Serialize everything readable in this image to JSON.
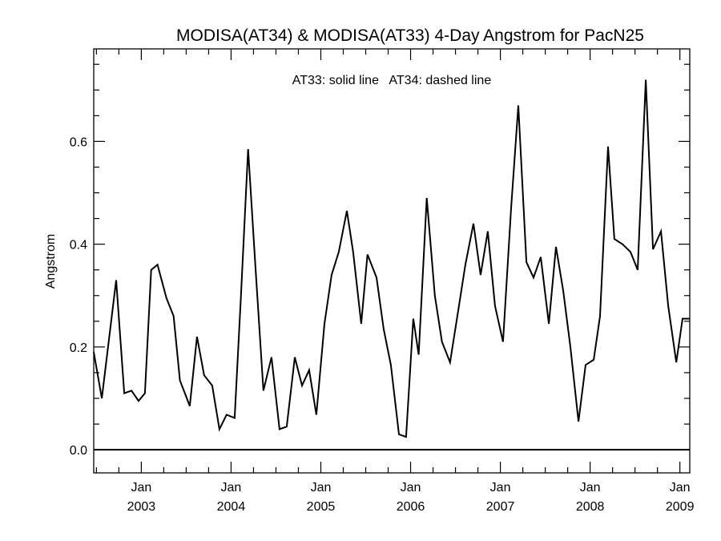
{
  "chart_data": {
    "type": "line",
    "title": "MODISA(AT34) & MODISA(AT33) 4-Day Angstrom for PacN25",
    "annotation": "AT33: solid line   AT34: dashed line",
    "xlabel": "",
    "ylabel": "Angstrom",
    "xlim": [
      2002.47,
      2009.11
    ],
    "ylim": [
      -0.045,
      0.78
    ],
    "x_ticks": [
      {
        "value": 2003.0,
        "month": "Jan",
        "year": "2003"
      },
      {
        "value": 2004.0,
        "month": "Jan",
        "year": "2004"
      },
      {
        "value": 2005.0,
        "month": "Jan",
        "year": "2005"
      },
      {
        "value": 2006.0,
        "month": "Jan",
        "year": "2006"
      },
      {
        "value": 2007.0,
        "month": "Jan",
        "year": "2007"
      },
      {
        "value": 2008.0,
        "month": "Jan",
        "year": "2008"
      },
      {
        "value": 2009.0,
        "month": "Jan",
        "year": "2009"
      }
    ],
    "y_ticks": [
      {
        "value": 0.0,
        "label": "0.0"
      },
      {
        "value": 0.2,
        "label": "0.2"
      },
      {
        "value": 0.4,
        "label": "0.4"
      },
      {
        "value": 0.6,
        "label": "0.6"
      }
    ],
    "reference_line": 0.0,
    "grid": false,
    "series": [
      {
        "style": "solid",
        "x": [
          2002.47,
          2002.56,
          2002.72,
          2002.81,
          2002.89,
          2002.97,
          2003.04,
          2003.11,
          2003.18,
          2003.28,
          2003.36,
          2003.43,
          2003.54,
          2003.62,
          2003.7,
          2003.79,
          2003.87,
          2003.95,
          2004.04,
          2004.11,
          2004.19,
          2004.27,
          2004.36,
          2004.45,
          2004.54,
          2004.62,
          2004.71,
          2004.79,
          2004.87,
          2004.95,
          2005.04,
          2005.12,
          2005.2,
          2005.29,
          2005.36,
          2005.45,
          2005.52,
          2005.62,
          2005.7,
          2005.78,
          2005.87,
          2005.95,
          2006.03,
          2006.09,
          2006.18,
          2006.27,
          2006.35,
          2006.44,
          2006.53,
          2006.61,
          2006.7,
          2006.78,
          2006.86,
          2006.94,
          2007.03,
          2007.12,
          2007.2,
          2007.29,
          2007.37,
          2007.45,
          2007.54,
          2007.62,
          2007.7,
          2007.78,
          2007.87,
          2007.95,
          2008.04,
          2008.11,
          2008.2,
          2008.27,
          2008.36,
          2008.45,
          2008.53,
          2008.62,
          2008.7,
          2008.79,
          2008.87,
          2008.96,
          2009.03,
          2009.11
        ],
        "y": [
          0.19,
          0.1,
          0.33,
          0.11,
          0.115,
          0.095,
          0.11,
          0.35,
          0.36,
          0.295,
          0.26,
          0.135,
          0.085,
          0.22,
          0.145,
          0.125,
          0.04,
          0.068,
          0.062,
          0.3,
          0.585,
          0.36,
          0.115,
          0.18,
          0.04,
          0.045,
          0.18,
          0.125,
          0.155,
          0.068,
          0.245,
          0.34,
          0.385,
          0.465,
          0.385,
          0.245,
          0.38,
          0.335,
          0.235,
          0.165,
          0.03,
          0.025,
          0.255,
          0.185,
          0.49,
          0.3,
          0.21,
          0.17,
          0.27,
          0.36,
          0.44,
          0.34,
          0.425,
          0.28,
          0.21,
          0.47,
          0.67,
          0.365,
          0.335,
          0.375,
          0.245,
          0.395,
          0.31,
          0.2,
          0.055,
          0.165,
          0.175,
          0.26,
          0.59,
          0.41,
          0.4,
          0.385,
          0.35,
          0.72,
          0.39,
          0.425,
          0.28,
          0.17,
          0.255,
          0.255
        ]
      }
    ]
  }
}
